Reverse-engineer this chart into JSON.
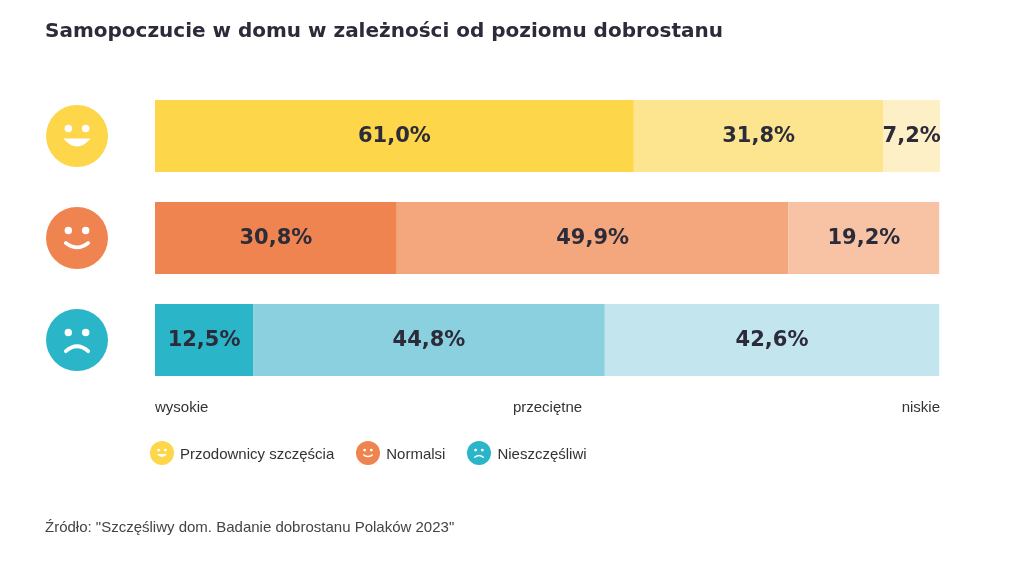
{
  "chart_data": {
    "type": "bar",
    "orientation": "horizontal",
    "stacked": true,
    "title": "Samopoczucie w domu w zależności od poziomu dobrostanu",
    "categories": [
      null,
      null,
      null
    ],
    "series": [
      {
        "name": "wysokie",
        "colors": [
          "#fdd64a",
          "#ef8450",
          "#2bb5c8"
        ],
        "values": [
          61.0,
          30.8,
          12.5
        ],
        "value_labels": [
          "61,0%",
          "30,8%",
          "12,5%"
        ]
      },
      {
        "name": "przeciętne",
        "colors": [
          "#fde48f",
          "#f4a77c",
          "#8ad0df"
        ],
        "values": [
          31.8,
          49.9,
          44.8
        ],
        "value_labels": [
          "31,8%",
          "49,9%",
          "44,8%"
        ]
      },
      {
        "name": "niskie",
        "colors": [
          "#fef0c6",
          "#f7c3a4",
          "#c2e5ee"
        ],
        "values": [
          7.2,
          19.2,
          42.6
        ],
        "value_labels": [
          "7,2%",
          "19,2%",
          "42,6%"
        ]
      }
    ],
    "annotations": [
      "Przodownicy szczęścia",
      "Normalsi",
      "Nieszczęśliwi",
      "Źródło: \"Szczęśliwy dom. Badanie dobrostanu Polaków 2023\""
    ]
  }
}
